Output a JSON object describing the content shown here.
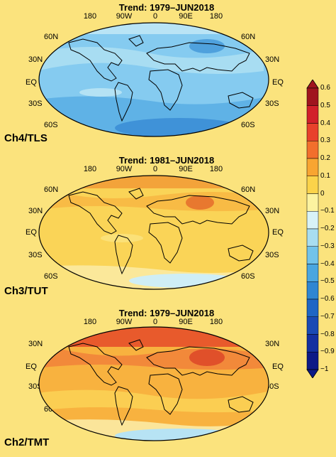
{
  "panels": [
    {
      "title": "Trend: 1979–JUN2018",
      "channel": "Ch4/TLS"
    },
    {
      "title": "Trend: 1981–JUN2018",
      "channel": "Ch3/TUT"
    },
    {
      "title": "Trend: 1979–JUN2018",
      "channel": "Ch2/TMT"
    }
  ],
  "lon_labels": [
    "180",
    "90W",
    "0",
    "90E",
    "180"
  ],
  "lat_labels_left": [
    "60N",
    "30N",
    "EQ",
    "30S",
    "60S"
  ],
  "lat_labels_right": [
    "60N",
    "30N",
    "EQ",
    "30S",
    "60S"
  ],
  "colorbar": {
    "ticks": [
      "0.6",
      "0.5",
      "0.4",
      "0.3",
      "0.2",
      "0.1",
      "0",
      "−0.1",
      "−0.2",
      "−0.3",
      "−0.4",
      "−0.5",
      "−0.6",
      "−0.7",
      "−0.8",
      "−0.9",
      "−1"
    ],
    "colors": [
      "#a0141e",
      "#d2202a",
      "#e8412b",
      "#f26f2c",
      "#f8a531",
      "#fbd34a",
      "#fcf3a0",
      "#d8f2f7",
      "#a8ddf0",
      "#72c3ea",
      "#4aa6e0",
      "#2f86d2",
      "#1f66c4",
      "#1a4ab4",
      "#1430a0",
      "#0d1a86"
    ]
  },
  "colors": {
    "background": "#fbe37d",
    "tls_base": "#7cc6ee",
    "tut_base": "#fad255",
    "tmt_base": "#f7a23a"
  }
}
